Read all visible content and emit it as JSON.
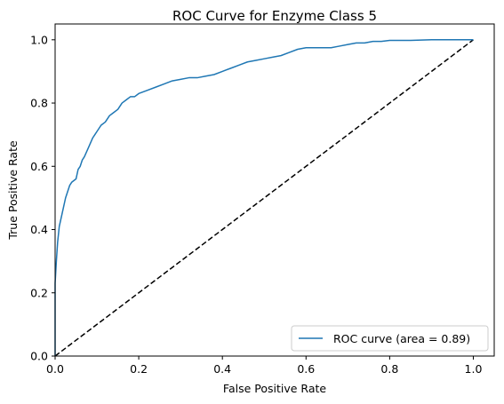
{
  "chart_data": {
    "type": "line",
    "title": "ROC Curve for Enzyme Class 5",
    "xlabel": "False Positive Rate",
    "ylabel": "True Positive Rate",
    "xlim": [
      0.0,
      1.05
    ],
    "ylim": [
      0.0,
      1.05
    ],
    "xticks": [
      "0.0",
      "0.2",
      "0.4",
      "0.6",
      "0.8",
      "1.0"
    ],
    "yticks": [
      "0.0",
      "0.2",
      "0.4",
      "0.6",
      "0.8",
      "1.0"
    ],
    "grid": false,
    "legend_position": "lower-right",
    "series": [
      {
        "name": "ROC curve (area = 0.89)",
        "color": "#1f77b4",
        "style": "solid",
        "x": [
          0.0,
          0.0,
          0.003,
          0.006,
          0.01,
          0.015,
          0.02,
          0.025,
          0.03,
          0.035,
          0.04,
          0.05,
          0.055,
          0.06,
          0.065,
          0.07,
          0.08,
          0.09,
          0.095,
          0.1,
          0.11,
          0.12,
          0.13,
          0.14,
          0.15,
          0.16,
          0.17,
          0.18,
          0.19,
          0.2,
          0.22,
          0.24,
          0.26,
          0.28,
          0.3,
          0.32,
          0.34,
          0.36,
          0.38,
          0.4,
          0.42,
          0.44,
          0.46,
          0.48,
          0.5,
          0.52,
          0.54,
          0.56,
          0.58,
          0.6,
          0.62,
          0.64,
          0.66,
          0.68,
          0.7,
          0.72,
          0.74,
          0.76,
          0.78,
          0.8,
          0.85,
          0.9,
          0.95,
          1.0
        ],
        "y": [
          0.0,
          0.23,
          0.3,
          0.36,
          0.41,
          0.44,
          0.47,
          0.5,
          0.52,
          0.54,
          0.55,
          0.56,
          0.59,
          0.6,
          0.62,
          0.63,
          0.66,
          0.69,
          0.7,
          0.71,
          0.73,
          0.74,
          0.76,
          0.77,
          0.78,
          0.8,
          0.81,
          0.82,
          0.82,
          0.83,
          0.84,
          0.85,
          0.86,
          0.87,
          0.875,
          0.88,
          0.88,
          0.885,
          0.89,
          0.9,
          0.91,
          0.92,
          0.93,
          0.935,
          0.94,
          0.945,
          0.95,
          0.96,
          0.97,
          0.975,
          0.975,
          0.975,
          0.975,
          0.98,
          0.985,
          0.99,
          0.99,
          0.995,
          0.995,
          0.998,
          0.998,
          1.0,
          1.0,
          1.0
        ]
      },
      {
        "name": "",
        "color": "#000000",
        "style": "dashed",
        "x": [
          0.0,
          1.0
        ],
        "y": [
          0.0,
          1.0
        ]
      }
    ]
  }
}
